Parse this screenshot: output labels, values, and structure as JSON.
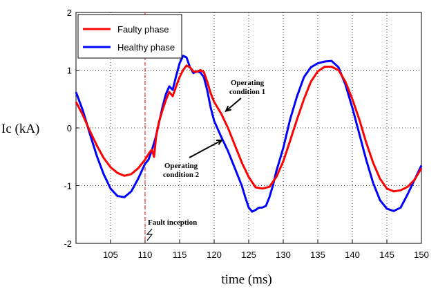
{
  "chart_data": {
    "type": "line",
    "title": "",
    "xlabel": "time (ms)",
    "ylabel": "Ic (kA)",
    "xlim": [
      100,
      150
    ],
    "ylim": [
      -2,
      2
    ],
    "xticks": [
      105,
      110,
      115,
      120,
      125,
      130,
      135,
      140,
      145,
      150
    ],
    "yticks": [
      -2,
      -1,
      0,
      1,
      2
    ],
    "grid": true,
    "legend_position": "top-left",
    "series": [
      {
        "name": "Faulty phase",
        "color": "#ff0000",
        "x": [
          100,
          101,
          102,
          103,
          104,
          105,
          106,
          107,
          108,
          109,
          110,
          110.5,
          110.8,
          111,
          111.3,
          111.6,
          112,
          112.5,
          113,
          113.5,
          114,
          114.5,
          115,
          115.5,
          116,
          116.5,
          117,
          117.5,
          118,
          118.5,
          119,
          119.5,
          120,
          121,
          122,
          123,
          124,
          125,
          126,
          127,
          128,
          129,
          130,
          131,
          132,
          133,
          134,
          135,
          136,
          137,
          138,
          139,
          140,
          141,
          142,
          143,
          144,
          145,
          146,
          147,
          148,
          149,
          150
        ],
        "y": [
          0.45,
          0.22,
          -0.05,
          -0.3,
          -0.52,
          -0.68,
          -0.78,
          -0.83,
          -0.8,
          -0.7,
          -0.55,
          -0.45,
          -0.4,
          -0.38,
          -0.5,
          -0.15,
          0.1,
          0.3,
          0.48,
          0.62,
          0.55,
          0.72,
          0.88,
          1.0,
          1.08,
          1.05,
          0.98,
          0.97,
          1.0,
          0.97,
          0.8,
          0.6,
          0.45,
          0.25,
          0.0,
          -0.3,
          -0.6,
          -0.85,
          -1.03,
          -1.05,
          -1.02,
          -0.85,
          -0.58,
          -0.22,
          0.15,
          0.5,
          0.8,
          0.98,
          1.06,
          1.06,
          1.0,
          0.8,
          0.5,
          0.15,
          -0.25,
          -0.6,
          -0.88,
          -1.05,
          -1.1,
          -1.08,
          -1.02,
          -0.9,
          -0.7
        ]
      },
      {
        "name": "Healthy phase",
        "color": "#0000ff",
        "x": [
          100,
          101,
          102,
          103,
          104,
          105,
          106,
          107,
          108,
          109,
          110,
          110.5,
          111,
          111.5,
          112,
          112.5,
          113,
          113.5,
          114,
          114.5,
          115,
          115.5,
          116,
          116.5,
          117,
          117.5,
          118,
          118.5,
          119,
          119.5,
          120,
          121,
          122,
          123,
          124,
          124.5,
          125,
          125.5,
          126,
          126.5,
          127,
          127.5,
          128,
          128.5,
          129,
          130,
          131,
          132,
          133,
          134,
          135,
          136,
          137,
          138,
          139,
          140,
          141,
          142,
          143,
          144,
          145,
          146,
          147,
          148,
          149,
          150
        ],
        "y": [
          0.62,
          0.3,
          -0.1,
          -0.48,
          -0.8,
          -1.05,
          -1.18,
          -1.2,
          -1.1,
          -0.88,
          -0.62,
          -0.55,
          -0.38,
          -0.18,
          0.08,
          0.35,
          0.58,
          0.72,
          0.66,
          0.9,
          1.12,
          1.25,
          1.22,
          1.05,
          0.95,
          0.98,
          0.96,
          0.88,
          0.65,
          0.35,
          0.12,
          -0.15,
          -0.4,
          -0.7,
          -1.0,
          -1.2,
          -1.38,
          -1.45,
          -1.42,
          -1.38,
          -1.38,
          -1.35,
          -1.2,
          -1.0,
          -0.75,
          -0.35,
          0.15,
          0.55,
          0.88,
          1.05,
          1.12,
          1.15,
          1.16,
          1.05,
          0.75,
          0.35,
          -0.1,
          -0.55,
          -0.95,
          -1.25,
          -1.4,
          -1.44,
          -1.38,
          -1.15,
          -0.9,
          -0.65
        ]
      }
    ],
    "annotations": [
      {
        "text_lines": [
          "Operating",
          "condition 1"
        ],
        "points_to": {
          "x": 121.3,
          "y": 0.28
        }
      },
      {
        "text_lines": [
          "Operating",
          "condition 2"
        ],
        "points_to": {
          "x": 120.9,
          "y": -0.2
        }
      },
      {
        "text_lines": [
          "Fault inception"
        ],
        "points_to": {
          "x": 110,
          "y": -2
        }
      }
    ],
    "marker": {
      "type": "vertical-dashed-line",
      "x": 110,
      "color": "#ff0000"
    }
  }
}
